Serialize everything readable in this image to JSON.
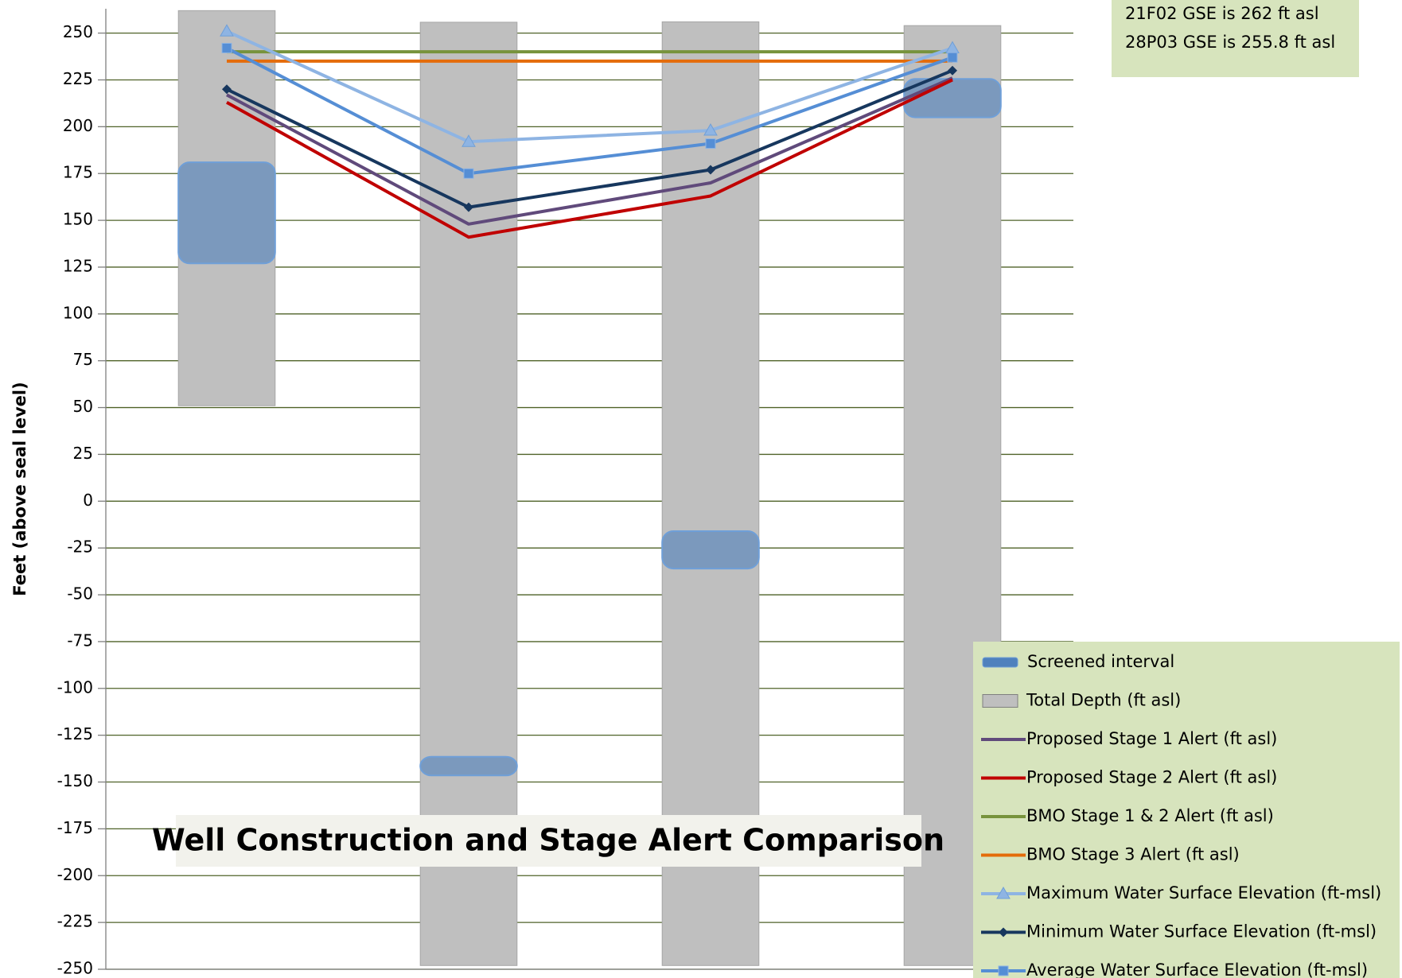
{
  "chart_data": {
    "type": "combo",
    "title": "Well Construction and Stage Alert Comparison",
    "y_label": "Feet (above seal level)",
    "annotations": [
      "21F02 GSE is 262 ft asl",
      "28P03 GSE is 255.8 ft asl"
    ],
    "categories": [
      null,
      null,
      null,
      null
    ],
    "ylim": [
      -250,
      263
    ],
    "yticks": [
      -250,
      -225,
      -200,
      -175,
      -150,
      -125,
      -100,
      -75,
      -50,
      -25,
      0,
      25,
      50,
      75,
      100,
      125,
      150,
      175,
      200,
      225,
      250
    ],
    "grid": true,
    "legend": "bottom-right",
    "series": [
      {
        "name": "Screened interval",
        "type": "range",
        "color": "#4f81bd",
        "values": [
          181,
          -136.5,
          -16,
          225.5
        ],
        "base": [
          127,
          -146.5,
          -36,
          205
        ]
      },
      {
        "name": "Total Depth (ft asl)",
        "type": "range",
        "color": "#bfbfbf",
        "values": [
          262,
          255.8,
          256,
          254
        ],
        "base": [
          51,
          -248,
          -248,
          -248
        ]
      },
      {
        "name": "Proposed Stage 1 Alert (ft asl)",
        "type": "line",
        "color": "#604a7b",
        "marker": "none",
        "values": [
          217,
          148,
          170,
          226
        ]
      },
      {
        "name": "Proposed Stage 2 Alert (ft asl)",
        "type": "line",
        "color": "#c00000",
        "marker": "none",
        "values": [
          213,
          141,
          163,
          225
        ]
      },
      {
        "name": "BMO Stage 1 & 2 Alert (ft asl)",
        "type": "line",
        "color": "#77933c",
        "marker": "none",
        "values": [
          240,
          240,
          240,
          240
        ]
      },
      {
        "name": "BMO Stage 3 Alert (ft asl)",
        "type": "line",
        "color": "#e46c0a",
        "marker": "none",
        "values": [
          235,
          235,
          235,
          235
        ]
      },
      {
        "name": "Maximum Water Surface Elevation (ft-msl)",
        "type": "line",
        "color": "#8eb4e3",
        "marker": "triangle",
        "values": [
          251,
          192,
          198,
          242
        ]
      },
      {
        "name": "Minimum Water Surface Elevation (ft-msl)",
        "type": "line",
        "color": "#17375e",
        "marker": "diamond",
        "values": [
          220,
          157,
          177,
          230
        ]
      },
      {
        "name": "Average Water Surface Elevation (ft-msl)",
        "type": "line",
        "color": "#558ed5",
        "marker": "square",
        "values": [
          242,
          175,
          191,
          237
        ]
      }
    ]
  }
}
